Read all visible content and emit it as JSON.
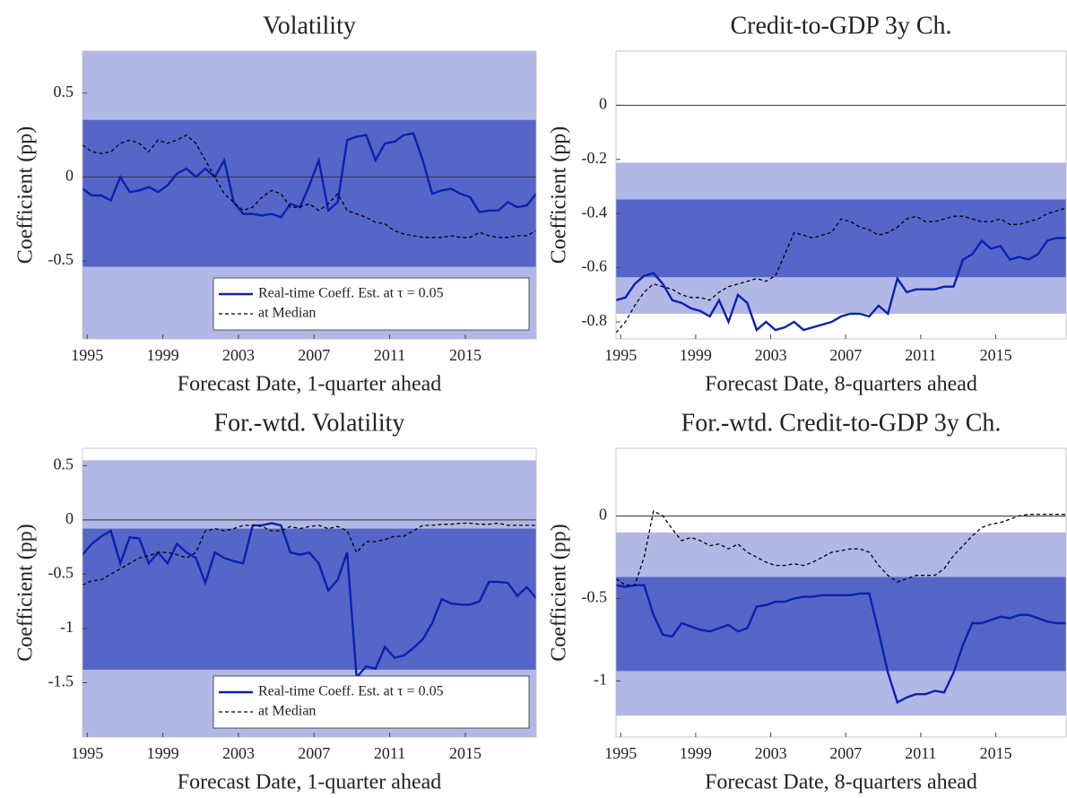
{
  "chart_data": [
    {
      "type": "line",
      "title": "Volatility",
      "xlabel": "Forecast Date, 1-quarter ahead",
      "ylabel": "Coefficient (pp)",
      "x": [
        1994.75,
        1995.25,
        1995.75,
        1996.25,
        1996.75,
        1997.25,
        1997.75,
        1998.25,
        1998.75,
        1999.25,
        1999.75,
        2000.25,
        2000.75,
        2001.25,
        2001.75,
        2002.25,
        2002.75,
        2003.25,
        2003.75,
        2004.25,
        2004.75,
        2005.25,
        2005.75,
        2006.25,
        2006.75,
        2007.25,
        2007.75,
        2008.25,
        2008.75,
        2009.25,
        2009.75,
        2010.25,
        2010.75,
        2011.25,
        2011.75,
        2012.25,
        2012.75,
        2013.25,
        2013.75,
        2014.25,
        2014.75,
        2015.25,
        2015.75,
        2016.25,
        2016.75,
        2017.25,
        2017.75,
        2018.25,
        2018.75
      ],
      "series": [
        {
          "name": "Real-time Coeff. Est. at τ = 0.05",
          "color": "#0b20b0",
          "dash": false,
          "values": [
            -0.07,
            -0.11,
            -0.11,
            -0.14,
            0.0,
            -0.09,
            -0.08,
            -0.06,
            -0.09,
            -0.05,
            0.02,
            0.05,
            0.0,
            0.05,
            0.0,
            0.1,
            -0.15,
            -0.22,
            -0.22,
            -0.23,
            -0.22,
            -0.24,
            -0.16,
            -0.18,
            -0.05,
            0.1,
            -0.2,
            -0.15,
            0.22,
            0.24,
            0.25,
            0.1,
            0.2,
            0.21,
            0.25,
            0.26,
            0.1,
            -0.1,
            -0.08,
            -0.07,
            -0.1,
            -0.12,
            -0.21,
            -0.2,
            -0.2,
            -0.15,
            -0.18,
            -0.17,
            -0.1
          ]
        },
        {
          "name": "at Median",
          "color": "#000000",
          "dash": true,
          "values": [
            0.19,
            0.15,
            0.14,
            0.15,
            0.2,
            0.22,
            0.2,
            0.15,
            0.22,
            0.2,
            0.22,
            0.25,
            0.2,
            0.1,
            0.0,
            -0.1,
            -0.15,
            -0.2,
            -0.18,
            -0.12,
            -0.08,
            -0.1,
            -0.18,
            -0.18,
            -0.16,
            -0.2,
            -0.16,
            -0.1,
            -0.2,
            -0.22,
            -0.24,
            -0.27,
            -0.28,
            -0.32,
            -0.34,
            -0.35,
            -0.36,
            -0.36,
            -0.36,
            -0.35,
            -0.36,
            -0.36,
            -0.33,
            -0.35,
            -0.36,
            -0.36,
            -0.35,
            -0.35,
            -0.32
          ]
        }
      ],
      "bands": [
        {
          "range": [
            -0.965,
            0.75
          ],
          "color": "#b2b8e5"
        },
        {
          "range": [
            -0.535,
            0.34
          ],
          "color": "#5566c8"
        }
      ],
      "hline": 0,
      "legend": "lower right",
      "xlim": [
        1994.75,
        2018.75
      ],
      "xticks": [
        1995,
        1999,
        2003,
        2007,
        2011,
        2015
      ],
      "ylim": [
        -0.965,
        0.75
      ],
      "yticks": [
        0.5,
        0,
        -0.5
      ]
    },
    {
      "type": "line",
      "title": "Credit-to-GDP 3y Ch.",
      "xlabel": "Forecast Date, 8-quarters ahead",
      "ylabel": "Coefficient (pp)",
      "x": [
        1994.75,
        1995.25,
        1995.75,
        1996.25,
        1996.75,
        1997.25,
        1997.75,
        1998.25,
        1998.75,
        1999.25,
        1999.75,
        2000.25,
        2000.75,
        2001.25,
        2001.75,
        2002.25,
        2002.75,
        2003.25,
        2003.75,
        2004.25,
        2004.75,
        2005.25,
        2005.75,
        2006.25,
        2006.75,
        2007.25,
        2007.75,
        2008.25,
        2008.75,
        2009.25,
        2009.75,
        2010.25,
        2010.75,
        2011.25,
        2011.75,
        2012.25,
        2012.75,
        2013.25,
        2013.75,
        2014.25,
        2014.75,
        2015.25,
        2015.75,
        2016.25,
        2016.75,
        2017.25,
        2017.75,
        2018.25,
        2018.75
      ],
      "series": [
        {
          "color": "#0b20b0",
          "dash": false,
          "values": [
            -0.72,
            -0.71,
            -0.66,
            -0.63,
            -0.62,
            -0.66,
            -0.72,
            -0.73,
            -0.75,
            -0.76,
            -0.78,
            -0.72,
            -0.8,
            -0.7,
            -0.73,
            -0.83,
            -0.8,
            -0.83,
            -0.82,
            -0.8,
            -0.83,
            -0.82,
            -0.81,
            -0.8,
            -0.78,
            -0.77,
            -0.77,
            -0.78,
            -0.74,
            -0.77,
            -0.64,
            -0.69,
            -0.68,
            -0.68,
            -0.68,
            -0.67,
            -0.67,
            -0.57,
            -0.55,
            -0.5,
            -0.53,
            -0.52,
            -0.57,
            -0.56,
            -0.57,
            -0.55,
            -0.5,
            -0.49,
            -0.49
          ]
        },
        {
          "color": "#000000",
          "dash": true,
          "values": [
            -0.84,
            -0.8,
            -0.74,
            -0.69,
            -0.66,
            -0.67,
            -0.68,
            -0.7,
            -0.71,
            -0.71,
            -0.72,
            -0.69,
            -0.67,
            -0.66,
            -0.65,
            -0.64,
            -0.65,
            -0.63,
            -0.55,
            -0.47,
            -0.48,
            -0.49,
            -0.48,
            -0.47,
            -0.42,
            -0.43,
            -0.45,
            -0.46,
            -0.48,
            -0.47,
            -0.45,
            -0.42,
            -0.41,
            -0.43,
            -0.43,
            -0.42,
            -0.41,
            -0.41,
            -0.42,
            -0.43,
            -0.43,
            -0.42,
            -0.44,
            -0.44,
            -0.43,
            -0.42,
            -0.4,
            -0.39,
            -0.38
          ]
        }
      ],
      "bands": [
        {
          "range": [
            -0.77,
            -0.212
          ],
          "color": "#b2b8e5"
        },
        {
          "range": [
            -0.635,
            -0.348
          ],
          "color": "#5566c8"
        }
      ],
      "hline": 0,
      "xlim": [
        1994.75,
        2018.75
      ],
      "xticks": [
        1995,
        1999,
        2003,
        2007,
        2011,
        2015
      ],
      "ylim": [
        -0.863,
        0.2
      ],
      "yticks": [
        0,
        -0.2,
        -0.4,
        -0.6,
        -0.8
      ]
    },
    {
      "type": "line",
      "title": "For.-wtd. Volatility",
      "xlabel": "Forecast Date, 1-quarter ahead",
      "ylabel": "Coefficient (pp)",
      "x": [
        1994.75,
        1995.25,
        1995.75,
        1996.25,
        1996.75,
        1997.25,
        1997.75,
        1998.25,
        1998.75,
        1999.25,
        1999.75,
        2000.25,
        2000.75,
        2001.25,
        2001.75,
        2002.25,
        2002.75,
        2003.25,
        2003.75,
        2004.25,
        2004.75,
        2005.25,
        2005.75,
        2006.25,
        2006.75,
        2007.25,
        2007.75,
        2008.25,
        2008.75,
        2009.25,
        2009.75,
        2010.25,
        2010.75,
        2011.25,
        2011.75,
        2012.25,
        2012.75,
        2013.25,
        2013.75,
        2014.25,
        2014.75,
        2015.25,
        2015.75,
        2016.25,
        2016.75,
        2017.25,
        2017.75,
        2018.25,
        2018.75
      ],
      "series": [
        {
          "name": "Real-time Coeff. Est. at τ = 0.05",
          "color": "#0b20b0",
          "dash": false,
          "values": [
            -0.32,
            -0.22,
            -0.15,
            -0.1,
            -0.4,
            -0.16,
            -0.17,
            -0.4,
            -0.3,
            -0.4,
            -0.22,
            -0.3,
            -0.35,
            -0.58,
            -0.3,
            -0.35,
            -0.38,
            -0.4,
            -0.05,
            -0.05,
            -0.03,
            -0.05,
            -0.3,
            -0.32,
            -0.3,
            -0.4,
            -0.65,
            -0.55,
            -0.3,
            -1.45,
            -1.35,
            -1.37,
            -1.17,
            -1.27,
            -1.25,
            -1.18,
            -1.1,
            -0.95,
            -0.73,
            -0.77,
            -0.78,
            -0.78,
            -0.75,
            -0.57,
            -0.57,
            -0.58,
            -0.7,
            -0.62,
            -0.72
          ]
        },
        {
          "name": "at Median",
          "color": "#000000",
          "dash": true,
          "values": [
            -0.6,
            -0.56,
            -0.55,
            -0.5,
            -0.45,
            -0.4,
            -0.35,
            -0.33,
            -0.3,
            -0.3,
            -0.32,
            -0.35,
            -0.3,
            -0.1,
            -0.08,
            -0.1,
            -0.08,
            -0.05,
            -0.05,
            -0.06,
            -0.1,
            -0.1,
            -0.06,
            -0.08,
            -0.06,
            -0.05,
            -0.08,
            -0.06,
            -0.1,
            -0.3,
            -0.2,
            -0.2,
            -0.18,
            -0.15,
            -0.15,
            -0.1,
            -0.05,
            -0.05,
            -0.04,
            -0.04,
            -0.03,
            -0.03,
            -0.04,
            -0.04,
            -0.03,
            -0.05,
            -0.05,
            -0.05,
            -0.05
          ]
        }
      ],
      "bands": [
        {
          "range": [
            -2.0,
            0.55
          ],
          "color": "#b2b8e5"
        },
        {
          "range": [
            -1.38,
            -0.08
          ],
          "color": "#5566c8"
        }
      ],
      "hline": 0,
      "legend": "lower right",
      "xlim": [
        1994.75,
        2018.75
      ],
      "xticks": [
        1995,
        1999,
        2003,
        2007,
        2011,
        2015
      ],
      "ylim": [
        -2.0,
        0.66
      ],
      "yticks": [
        0.5,
        0,
        -0.5,
        -1,
        -1.5
      ]
    },
    {
      "type": "line",
      "title": "For.-wtd. Credit-to-GDP 3y Ch.",
      "xlabel": "Forecast Date, 8-quarters ahead",
      "ylabel": "Coefficient (pp)",
      "x": [
        1994.75,
        1995.25,
        1995.75,
        1996.25,
        1996.75,
        1997.25,
        1997.75,
        1998.25,
        1998.75,
        1999.25,
        1999.75,
        2000.25,
        2000.75,
        2001.25,
        2001.75,
        2002.25,
        2002.75,
        2003.25,
        2003.75,
        2004.25,
        2004.75,
        2005.25,
        2005.75,
        2006.25,
        2006.75,
        2007.25,
        2007.75,
        2008.25,
        2008.75,
        2009.25,
        2009.75,
        2010.25,
        2010.75,
        2011.25,
        2011.75,
        2012.25,
        2012.75,
        2013.25,
        2013.75,
        2014.25,
        2014.75,
        2015.25,
        2015.75,
        2016.25,
        2016.75,
        2017.25,
        2017.75,
        2018.25,
        2018.75
      ],
      "series": [
        {
          "color": "#0b20b0",
          "dash": false,
          "values": [
            -0.42,
            -0.43,
            -0.42,
            -0.42,
            -0.6,
            -0.72,
            -0.73,
            -0.65,
            -0.67,
            -0.69,
            -0.7,
            -0.68,
            -0.66,
            -0.7,
            -0.68,
            -0.55,
            -0.54,
            -0.52,
            -0.52,
            -0.5,
            -0.49,
            -0.49,
            -0.48,
            -0.48,
            -0.48,
            -0.48,
            -0.47,
            -0.47,
            -0.7,
            -0.95,
            -1.13,
            -1.1,
            -1.08,
            -1.08,
            -1.06,
            -1.07,
            -0.95,
            -0.78,
            -0.65,
            -0.65,
            -0.63,
            -0.61,
            -0.62,
            -0.6,
            -0.6,
            -0.62,
            -0.64,
            -0.65,
            -0.65
          ]
        },
        {
          "color": "#000000",
          "dash": true,
          "values": [
            -0.38,
            -0.42,
            -0.42,
            -0.25,
            0.03,
            0.0,
            -0.08,
            -0.15,
            -0.13,
            -0.15,
            -0.18,
            -0.17,
            -0.2,
            -0.17,
            -0.22,
            -0.25,
            -0.28,
            -0.3,
            -0.3,
            -0.29,
            -0.3,
            -0.28,
            -0.25,
            -0.22,
            -0.21,
            -0.2,
            -0.2,
            -0.22,
            -0.3,
            -0.36,
            -0.4,
            -0.38,
            -0.36,
            -0.36,
            -0.36,
            -0.32,
            -0.24,
            -0.18,
            -0.12,
            -0.07,
            -0.05,
            -0.04,
            -0.02,
            0.0,
            0.01,
            0.01,
            0.01,
            0.01,
            0.01
          ]
        }
      ],
      "bands": [
        {
          "range": [
            -1.21,
            -0.1
          ],
          "color": "#b2b8e5"
        },
        {
          "range": [
            -0.94,
            -0.37
          ],
          "color": "#5566c8"
        }
      ],
      "hline": 0,
      "xlim": [
        1994.75,
        2018.75
      ],
      "xticks": [
        1995,
        1999,
        2003,
        2007,
        2011,
        2015
      ],
      "ylim": [
        -1.34,
        0.41
      ],
      "yticks": [
        0,
        -0.5,
        -1
      ]
    }
  ]
}
